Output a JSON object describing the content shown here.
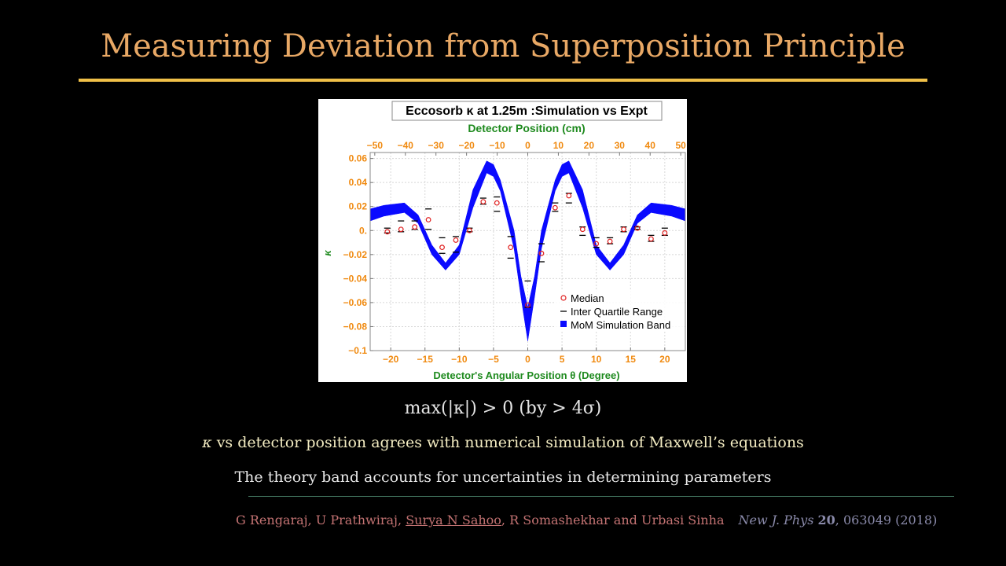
{
  "slide": {
    "title": "Measuring Deviation from Superposition Principle",
    "equation": "max(|κ|) > 0 (by > 4σ)",
    "bullet1": {
      "symbol": "κ",
      "text": " vs detector position agrees with numerical simulation of Maxwell’s equations"
    },
    "bullet2": "The theory band accounts for uncertainties in determining parameters",
    "reference": {
      "authors_pre": "G Rengaraj, U Prathwiraj, ",
      "authors_highlight": "Surya N Sahoo",
      "authors_post": ", R Somashekhar and Urbasi Sinha",
      "journal": "New J. Phys",
      "volume": "20",
      "rest": ", 063049 (2018)"
    }
  },
  "chart_data": {
    "type": "scatter",
    "title": "Eccosorb κ at 1.25m :Simulation vs Expt",
    "xlabel": "Detector's Angular Position θ (Degree)",
    "x2label": "Detector Position (cm)",
    "ylabel": "κ",
    "xlim": [
      -23,
      23
    ],
    "ylim": [
      -0.1,
      0.065
    ],
    "x_ticks": [
      -20,
      -15,
      -10,
      -5,
      0,
      5,
      10,
      15,
      20
    ],
    "x2_ticks": [
      -50,
      -40,
      -30,
      -20,
      -10,
      0,
      10,
      20,
      30,
      40,
      50
    ],
    "y_ticks": [
      0.06,
      0.04,
      0.02,
      0,
      -0.02,
      -0.04,
      -0.06,
      -0.08,
      -0.1
    ],
    "y_tick_labels": [
      "0.06",
      "0.04",
      "0.02",
      "0.",
      "-0.02",
      "-0.04",
      "-0.06",
      "-0.08",
      "-0.1"
    ],
    "grid": true,
    "legend_position": "bottom-right",
    "legend": [
      "Median",
      "Inter Quartile Range",
      "MoM Simulation Band"
    ],
    "colors": {
      "median": "#e02020",
      "iqr": "#000000",
      "band": "#0a0aff",
      "axis_ticks": "#f08a10",
      "axis_titles": "#1e8a1e"
    },
    "series": [
      {
        "name": "Median",
        "points": [
          {
            "x": -20.5,
            "y": -0.001
          },
          {
            "x": -18.5,
            "y": 0.001
          },
          {
            "x": -16.5,
            "y": 0.003
          },
          {
            "x": -14.5,
            "y": 0.009
          },
          {
            "x": -12.5,
            "y": -0.014
          },
          {
            "x": -10.5,
            "y": -0.008
          },
          {
            "x": -8.5,
            "y": 0.0
          },
          {
            "x": -6.5,
            "y": 0.024
          },
          {
            "x": -4.5,
            "y": 0.023
          },
          {
            "x": -2.5,
            "y": -0.014
          },
          {
            "x": 0,
            "y": -0.062
          },
          {
            "x": 2.0,
            "y": -0.019
          },
          {
            "x": 4.0,
            "y": 0.019
          },
          {
            "x": 6.0,
            "y": 0.029
          },
          {
            "x": 8.0,
            "y": 0.001
          },
          {
            "x": 10.0,
            "y": -0.011
          },
          {
            "x": 12.0,
            "y": -0.009
          },
          {
            "x": 14.0,
            "y": 0.001
          },
          {
            "x": 16.0,
            "y": 0.002
          },
          {
            "x": 18.0,
            "y": -0.007
          },
          {
            "x": 20.0,
            "y": -0.002
          }
        ]
      },
      {
        "name": "Inter Quartile Range",
        "points": [
          {
            "x": -20.5,
            "y1": -0.002,
            "y2": 0.002
          },
          {
            "x": -18.5,
            "y1": -0.001,
            "y2": 0.008
          },
          {
            "x": -16.5,
            "y1": 0.001,
            "y2": 0.008
          },
          {
            "x": -14.5,
            "y1": 0.001,
            "y2": 0.018
          },
          {
            "x": -12.5,
            "y1": -0.019,
            "y2": -0.006
          },
          {
            "x": -10.5,
            "y1": -0.018,
            "y2": -0.005
          },
          {
            "x": -8.5,
            "y1": -0.001,
            "y2": 0.002
          },
          {
            "x": -6.5,
            "y1": 0.022,
            "y2": 0.027
          },
          {
            "x": -4.5,
            "y1": 0.016,
            "y2": 0.028
          },
          {
            "x": -2.5,
            "y1": -0.023,
            "y2": -0.005
          },
          {
            "x": 0,
            "y1": -0.064,
            "y2": -0.042
          },
          {
            "x": 2.0,
            "y1": -0.026,
            "y2": -0.011
          },
          {
            "x": 4.0,
            "y1": 0.016,
            "y2": 0.023
          },
          {
            "x": 6.0,
            "y1": 0.023,
            "y2": 0.031
          },
          {
            "x": 8.0,
            "y1": -0.004,
            "y2": 0.003
          },
          {
            "x": 10.0,
            "y1": -0.014,
            "y2": -0.006
          },
          {
            "x": 12.0,
            "y1": -0.011,
            "y2": -0.006
          },
          {
            "x": 14.0,
            "y1": -0.001,
            "y2": 0.003
          },
          {
            "x": 16.0,
            "y1": 0.001,
            "y2": 0.003
          },
          {
            "x": 18.0,
            "y1": -0.009,
            "y2": -0.004
          },
          {
            "x": 20.0,
            "y1": -0.004,
            "y2": 0.002
          }
        ]
      },
      {
        "name": "MoM Simulation Band",
        "band": [
          {
            "x": -23,
            "lo": 0.008,
            "hi": 0.018
          },
          {
            "x": -21,
            "lo": 0.012,
            "hi": 0.021
          },
          {
            "x": -18,
            "lo": 0.015,
            "hi": 0.023
          },
          {
            "x": -16,
            "lo": 0.006,
            "hi": 0.013
          },
          {
            "x": -14,
            "lo": -0.02,
            "hi": -0.012
          },
          {
            "x": -12,
            "lo": -0.033,
            "hi": -0.027
          },
          {
            "x": -10,
            "lo": -0.02,
            "hi": -0.012
          },
          {
            "x": -8,
            "lo": 0.019,
            "hi": 0.034
          },
          {
            "x": -6,
            "lo": 0.048,
            "hi": 0.058
          },
          {
            "x": -5,
            "lo": 0.045,
            "hi": 0.055
          },
          {
            "x": -4,
            "lo": 0.033,
            "hi": 0.042
          },
          {
            "x": -2,
            "lo": -0.015,
            "hi": 0.0
          },
          {
            "x": -1,
            "lo": -0.055,
            "hi": -0.038
          },
          {
            "x": 0,
            "lo": -0.092,
            "hi": -0.064
          },
          {
            "x": 1,
            "lo": -0.055,
            "hi": -0.038
          },
          {
            "x": 2,
            "lo": -0.015,
            "hi": 0.0
          },
          {
            "x": 4,
            "lo": 0.033,
            "hi": 0.042
          },
          {
            "x": 5,
            "lo": 0.045,
            "hi": 0.055
          },
          {
            "x": 6,
            "lo": 0.048,
            "hi": 0.058
          },
          {
            "x": 8,
            "lo": 0.019,
            "hi": 0.034
          },
          {
            "x": 10,
            "lo": -0.02,
            "hi": -0.012
          },
          {
            "x": 12,
            "lo": -0.033,
            "hi": -0.027
          },
          {
            "x": 14,
            "lo": -0.02,
            "hi": -0.012
          },
          {
            "x": 16,
            "lo": 0.006,
            "hi": 0.013
          },
          {
            "x": 18,
            "lo": 0.015,
            "hi": 0.023
          },
          {
            "x": 21,
            "lo": 0.012,
            "hi": 0.021
          },
          {
            "x": 23,
            "lo": 0.008,
            "hi": 0.018
          }
        ]
      }
    ]
  }
}
